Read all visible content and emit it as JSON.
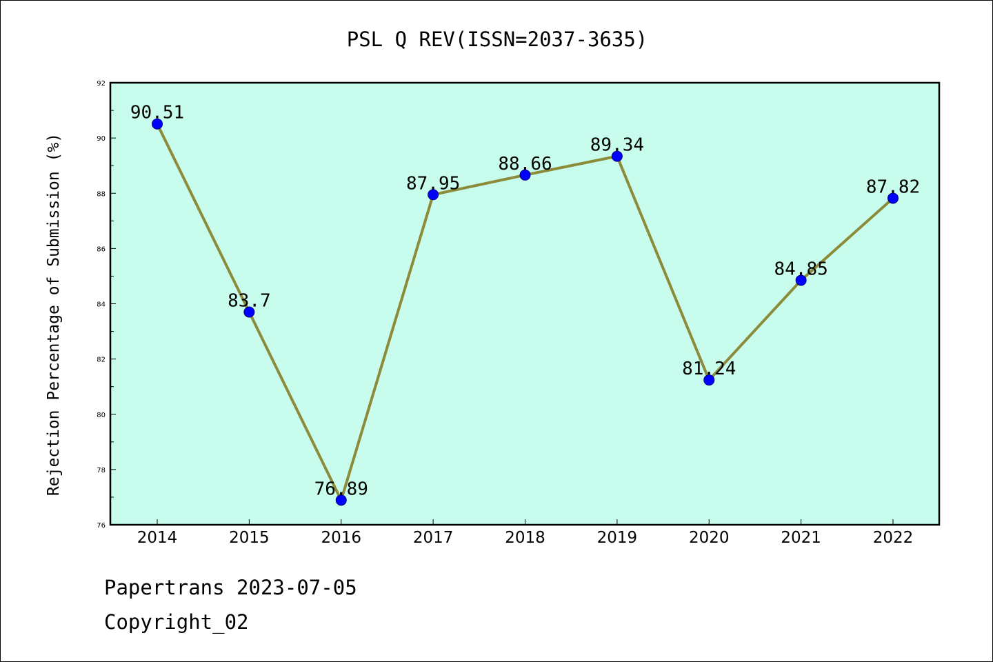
{
  "chart_data": {
    "type": "line",
    "title": "PSL Q REV(ISSN=2037-3635)",
    "xlabel": "",
    "ylabel": "Rejection Percentage of Submission (%)",
    "categories": [
      "2014",
      "2015",
      "2016",
      "2017",
      "2018",
      "2019",
      "2020",
      "2021",
      "2022"
    ],
    "series": [
      {
        "values": [
          90.51,
          83.7,
          76.89,
          87.95,
          88.66,
          89.34,
          81.24,
          84.85,
          87.82
        ],
        "labels": [
          "90.51",
          "83.7",
          "76.89",
          "87.95",
          "88.66",
          "89.34",
          "81.24",
          "84.85",
          "87.82"
        ],
        "line_color": "#8b8b3a",
        "marker_color": "#0000ff"
      }
    ],
    "ylim": [
      76,
      92
    ],
    "yticks": [
      "76",
      "78",
      "80",
      "82",
      "84",
      "86",
      "88",
      "90",
      "92"
    ],
    "plot_background": "#c8fdee",
    "grid": false,
    "legend": "none"
  },
  "footer": {
    "line1": "Papertrans 2023-07-05",
    "line2": "Copyright_02"
  }
}
